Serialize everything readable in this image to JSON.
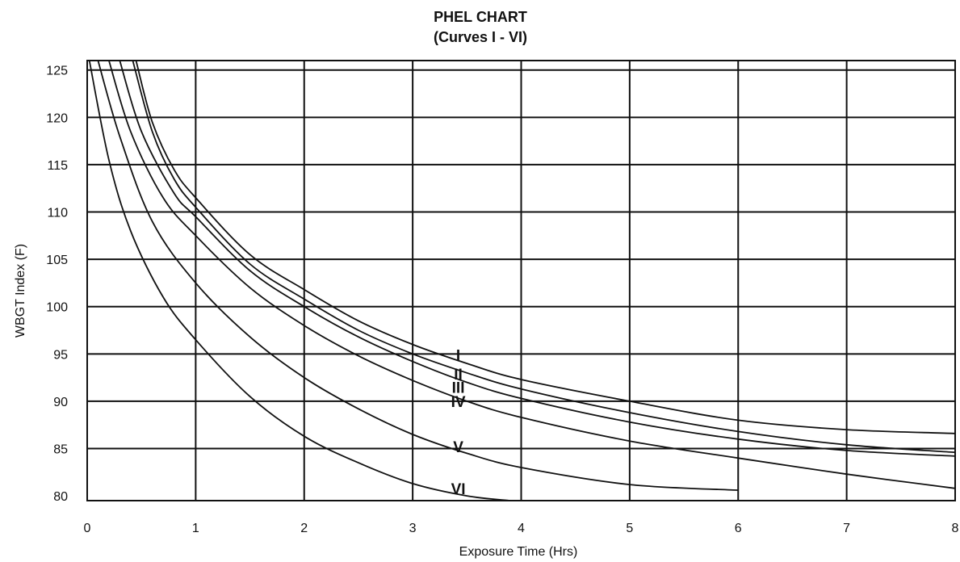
{
  "chart_data": {
    "type": "line",
    "title": "PHEL CHART",
    "subtitle": "(Curves I - VI)",
    "xlabel": "Exposure Time (Hrs)",
    "ylabel": "WBGT Index (F)",
    "xlim": [
      0,
      8
    ],
    "ylim": [
      79.5,
      126
    ],
    "xticks": [
      "0",
      "1",
      "2",
      "3",
      "4",
      "5",
      "6",
      "7",
      "8"
    ],
    "yticks": [
      "80",
      "85",
      "90",
      "95",
      "100",
      "105",
      "110",
      "115",
      "120",
      "125"
    ],
    "grid": true,
    "series": [
      {
        "name": "I",
        "x": [
          0.45,
          0.6,
          0.8,
          1,
          1.5,
          2,
          2.5,
          3,
          3.5,
          4,
          5,
          6,
          7,
          8
        ],
        "y": [
          126,
          119.5,
          114.5,
          111.5,
          105.5,
          101.8,
          98.5,
          96,
          94,
          92.3,
          90,
          88,
          87,
          86.6
        ]
      },
      {
        "name": "II",
        "x": [
          0.42,
          0.6,
          0.8,
          1,
          1.5,
          2,
          2.5,
          3,
          3.5,
          4,
          5,
          6,
          7,
          8
        ],
        "y": [
          126,
          118.5,
          113.5,
          110.5,
          104.5,
          100.8,
          97.5,
          95,
          93,
          91.3,
          88.8,
          86.8,
          85.4,
          84.6
        ]
      },
      {
        "name": "III",
        "x": [
          0.3,
          0.5,
          0.8,
          1,
          1.5,
          2,
          2.5,
          3,
          3.5,
          4,
          5,
          6,
          7,
          8
        ],
        "y": [
          126,
          118.5,
          112,
          109.5,
          103.8,
          100,
          96.8,
          94.2,
          92,
          90.3,
          87.8,
          86,
          84.8,
          84.2
        ]
      },
      {
        "name": "IV",
        "x": [
          0.2,
          0.4,
          0.7,
          1,
          1.5,
          2,
          2.5,
          3,
          3.5,
          4,
          5,
          6,
          7,
          8
        ],
        "y": [
          126,
          118.5,
          111.5,
          107.5,
          102,
          98,
          94.8,
          92.2,
          90,
          88.3,
          85.8,
          84,
          82.3,
          80.8
        ]
      },
      {
        "name": "V",
        "x": [
          0.1,
          0.3,
          0.6,
          1,
          1.5,
          2,
          2.5,
          3,
          3.5,
          4,
          5,
          6
        ],
        "y": [
          126,
          118,
          109,
          102.5,
          96.8,
          92.5,
          89.2,
          86.5,
          84.5,
          83,
          81.2,
          80.6
        ]
      },
      {
        "name": "VI",
        "x": [
          0.02,
          0.2,
          0.4,
          0.7,
          1,
          1.5,
          2,
          2.5,
          3,
          3.5,
          3.9
        ],
        "y": [
          126,
          115.5,
          108,
          101,
          96.5,
          90.5,
          86.3,
          83.5,
          81.3,
          80,
          79.5
        ]
      }
    ],
    "labels": [
      "I",
      "II",
      "III",
      "IV",
      "V",
      "VI"
    ]
  }
}
